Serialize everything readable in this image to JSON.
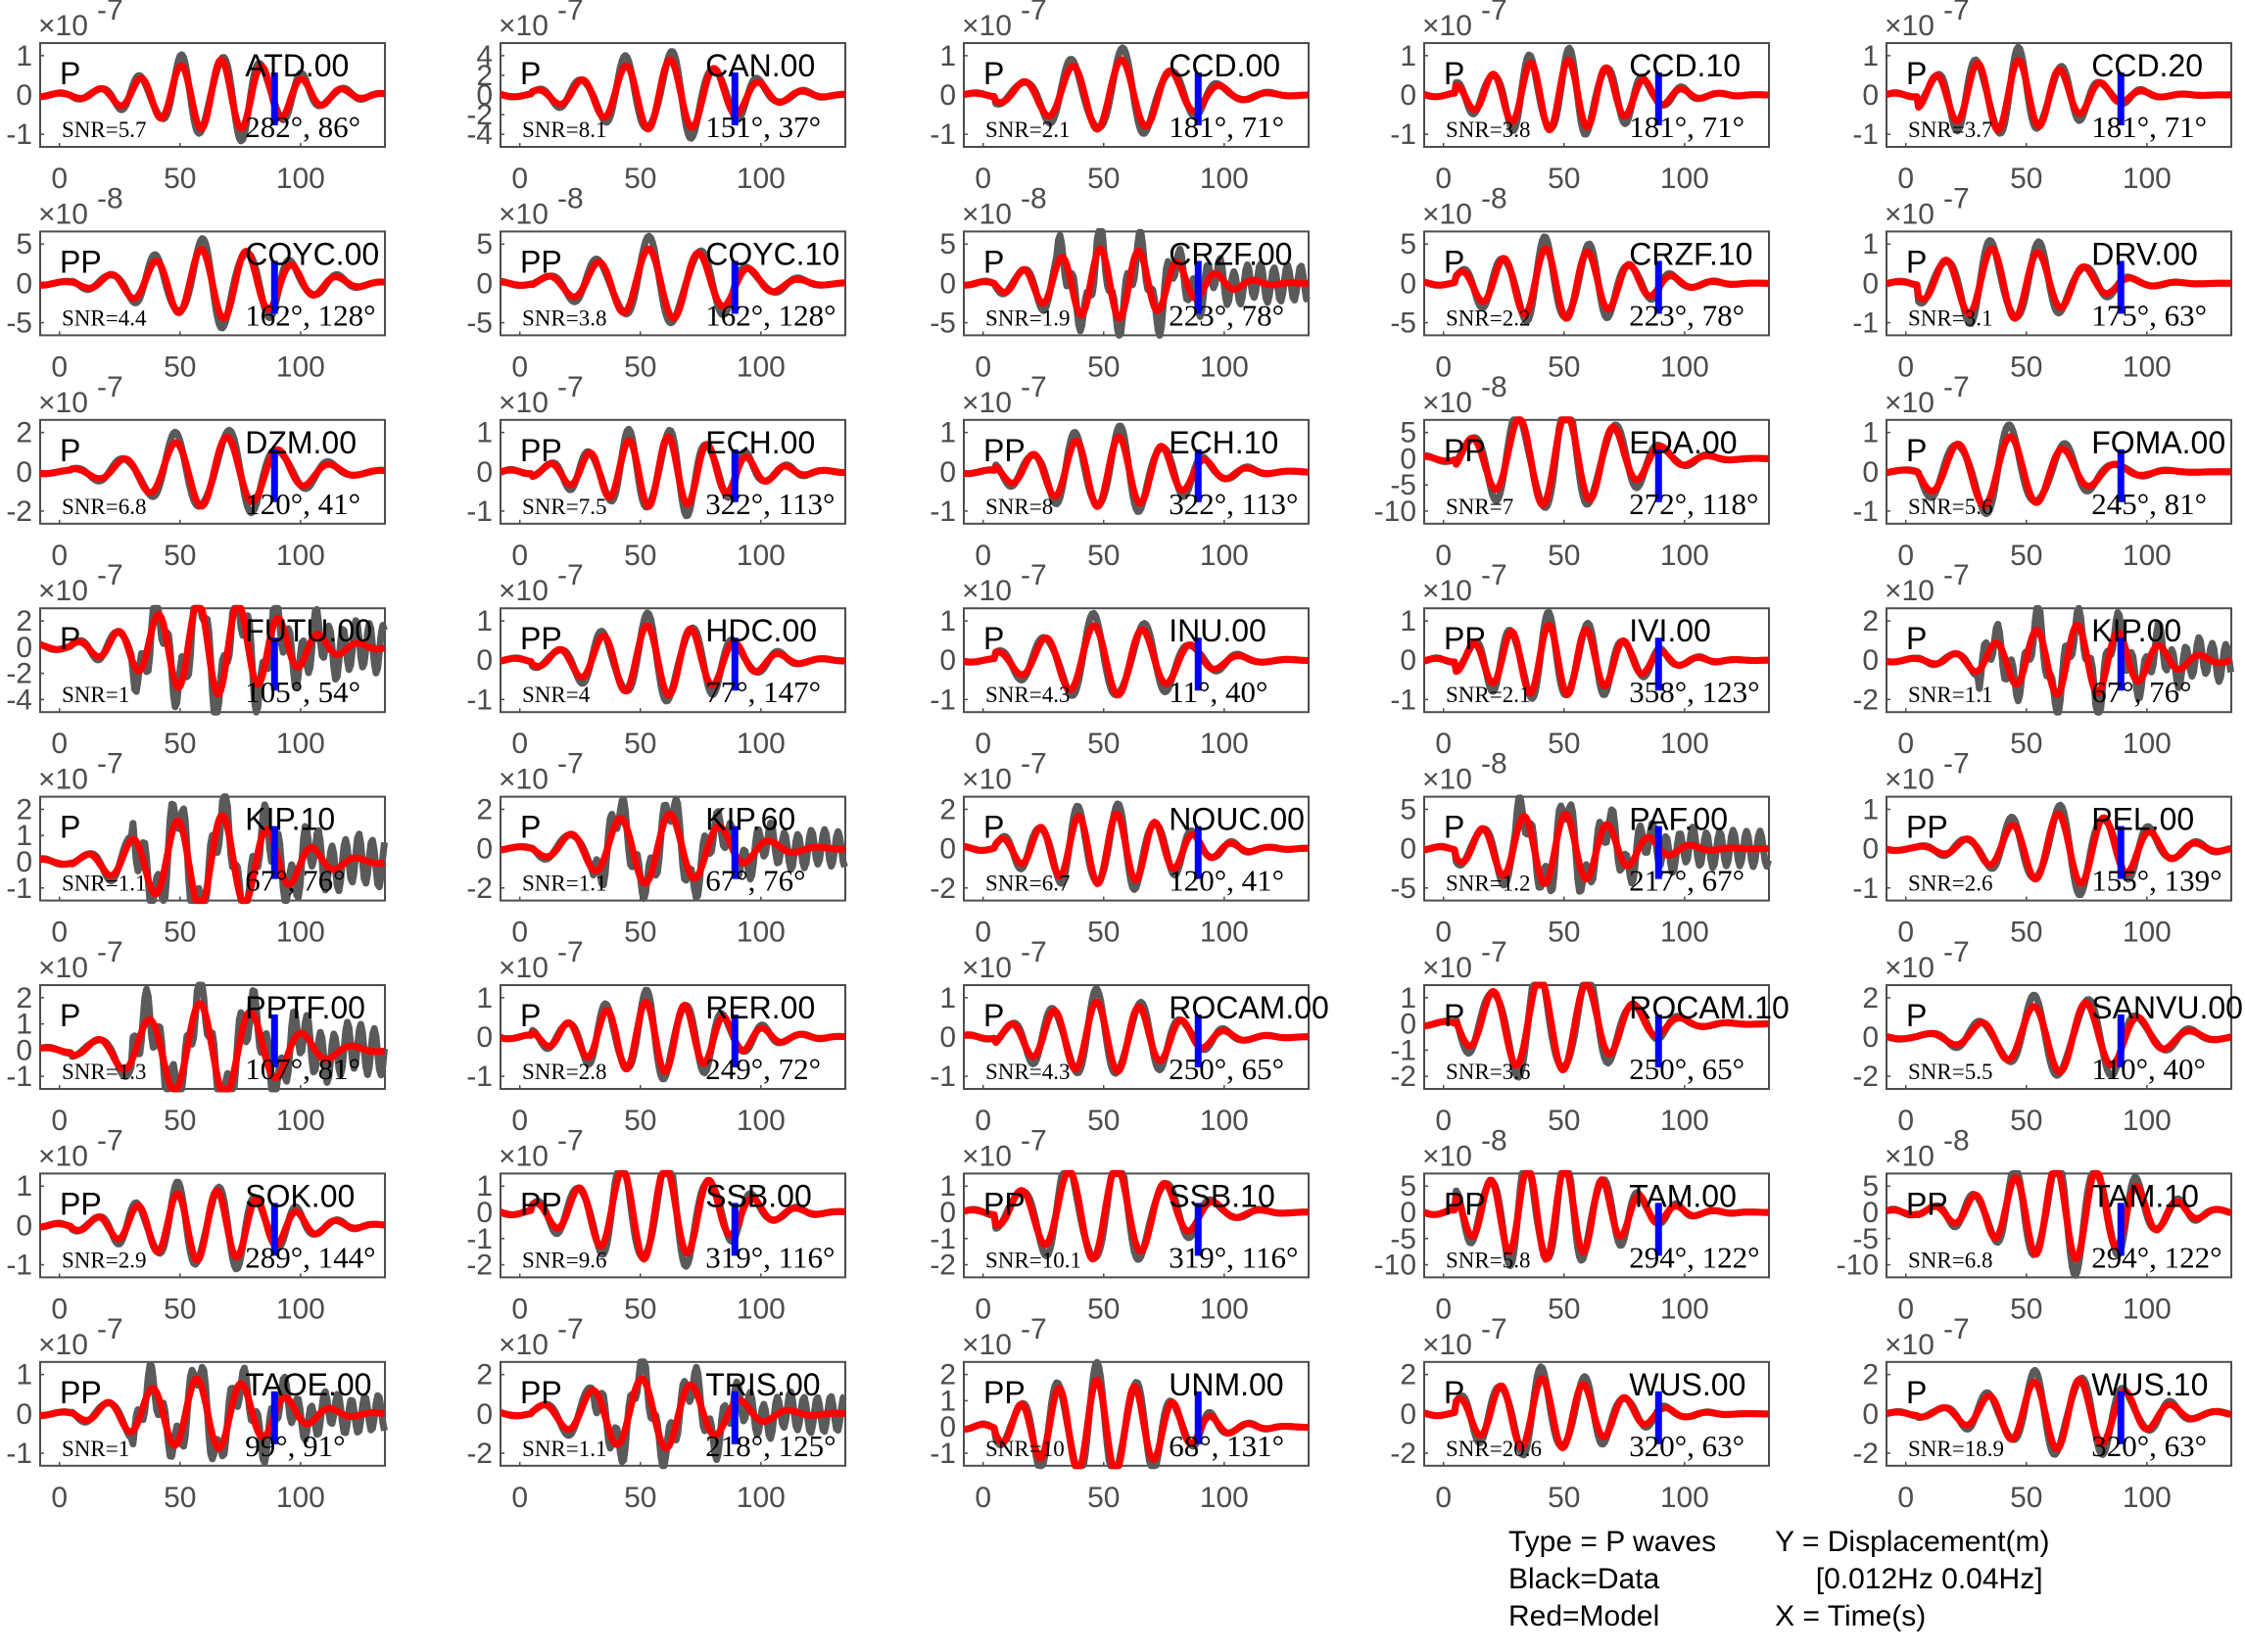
{
  "chart_data": {
    "type": "line",
    "layout": "grid 8 rows x 5 columns",
    "xlim": [
      -8,
      135
    ],
    "xticks": [
      0,
      50,
      100
    ],
    "marker_time": 89,
    "colors": {
      "data": "#5a5a5a",
      "model": "#ff0000",
      "marker": "#0000ff"
    },
    "series_names": [
      "Data",
      "Model"
    ],
    "panels": [
      {
        "station": "ATD.00",
        "phase": "P",
        "snr": "SNR=5.7",
        "angles": "282°, 86°",
        "exponent": "-7",
        "yticks": [
          -1,
          0,
          1
        ]
      },
      {
        "station": "CAN.00",
        "phase": "P",
        "snr": "SNR=8.1",
        "angles": "151°, 37°",
        "exponent": "-7",
        "yticks": [
          -4,
          -2,
          0,
          2,
          4
        ]
      },
      {
        "station": "CCD.00",
        "phase": "P",
        "snr": "SNR=2.1",
        "angles": "181°, 71°",
        "exponent": "-7",
        "yticks": [
          -1,
          0,
          1
        ]
      },
      {
        "station": "CCD.10",
        "phase": "P",
        "snr": "SNR=3.8",
        "angles": "181°, 71°",
        "exponent": "-7",
        "yticks": [
          -1,
          0,
          1
        ]
      },
      {
        "station": "CCD.20",
        "phase": "P",
        "snr": "SNR=3.7",
        "angles": "181°, 71°",
        "exponent": "-7",
        "yticks": [
          -1,
          0,
          1
        ]
      },
      {
        "station": "COYC.00",
        "phase": "PP",
        "snr": "SNR=4.4",
        "angles": "162°, 128°",
        "exponent": "-8",
        "yticks": [
          -5,
          0,
          5
        ]
      },
      {
        "station": "COYC.10",
        "phase": "PP",
        "snr": "SNR=3.8",
        "angles": "162°, 128°",
        "exponent": "-8",
        "yticks": [
          -5,
          0,
          5
        ]
      },
      {
        "station": "CRZF.00",
        "phase": "P",
        "snr": "SNR=1.9",
        "angles": "223°, 78°",
        "exponent": "-8",
        "yticks": [
          -5,
          0,
          5
        ]
      },
      {
        "station": "CRZF.10",
        "phase": "P",
        "snr": "SNR=2.2",
        "angles": "223°, 78°",
        "exponent": "-8",
        "yticks": [
          -5,
          0,
          5
        ]
      },
      {
        "station": "DRV.00",
        "phase": "P",
        "snr": "SNR=3.1",
        "angles": "175°, 63°",
        "exponent": "-7",
        "yticks": [
          -1,
          0,
          1
        ]
      },
      {
        "station": "DZM.00",
        "phase": "P",
        "snr": "SNR=6.8",
        "angles": "120°, 41°",
        "exponent": "-7",
        "yticks": [
          -2,
          0,
          2
        ]
      },
      {
        "station": "ECH.00",
        "phase": "PP",
        "snr": "SNR=7.5",
        "angles": "322°, 113°",
        "exponent": "-7",
        "yticks": [
          -1,
          0,
          1
        ]
      },
      {
        "station": "ECH.10",
        "phase": "PP",
        "snr": "SNR=8",
        "angles": "322°, 113°",
        "exponent": "-7",
        "yticks": [
          -1,
          0,
          1
        ]
      },
      {
        "station": "EDA.00",
        "phase": "PP",
        "snr": "SNR=7",
        "angles": "272°, 118°",
        "exponent": "-8",
        "yticks": [
          -10,
          -5,
          0,
          5
        ]
      },
      {
        "station": "FOMA.00",
        "phase": "P",
        "snr": "SNR=5.6",
        "angles": "245°, 81°",
        "exponent": "-7",
        "yticks": [
          -1,
          0,
          1
        ]
      },
      {
        "station": "FUTU.00",
        "phase": "P",
        "snr": "SNR=1",
        "angles": "105°, 54°",
        "exponent": "-7",
        "yticks": [
          -4,
          -2,
          0,
          2
        ]
      },
      {
        "station": "HDC.00",
        "phase": "PP",
        "snr": "SNR=4",
        "angles": "77°, 147°",
        "exponent": "-7",
        "yticks": [
          -1,
          0,
          1
        ]
      },
      {
        "station": "INU.00",
        "phase": "P",
        "snr": "SNR=4.3",
        "angles": "11°, 40°",
        "exponent": "-7",
        "yticks": [
          -1,
          0,
          1
        ]
      },
      {
        "station": "IVI.00",
        "phase": "PP",
        "snr": "SNR=2.1",
        "angles": "358°, 123°",
        "exponent": "-7",
        "yticks": [
          -1,
          0,
          1
        ]
      },
      {
        "station": "KIP.00",
        "phase": "P",
        "snr": "SNR=1.1",
        "angles": "67°, 76°",
        "exponent": "-7",
        "yticks": [
          -2,
          0,
          2
        ]
      },
      {
        "station": "KIP.10",
        "phase": "P",
        "snr": "SNR=1.1",
        "angles": "67°, 76°",
        "exponent": "-7",
        "yticks": [
          -1,
          0,
          1,
          2
        ]
      },
      {
        "station": "KIP.60",
        "phase": "P",
        "snr": "SNR=1.1",
        "angles": "67°, 76°",
        "exponent": "-7",
        "yticks": [
          -2,
          0,
          2
        ]
      },
      {
        "station": "NOUC.00",
        "phase": "P",
        "snr": "SNR=6.7",
        "angles": "120°, 41°",
        "exponent": "-7",
        "yticks": [
          -2,
          0,
          2
        ]
      },
      {
        "station": "PAF.00",
        "phase": "P",
        "snr": "SNR=1.2",
        "angles": "217°, 67°",
        "exponent": "-8",
        "yticks": [
          -5,
          0,
          5
        ]
      },
      {
        "station": "PEL.00",
        "phase": "PP",
        "snr": "SNR=2.6",
        "angles": "155°, 139°",
        "exponent": "-7",
        "yticks": [
          -1,
          0,
          1
        ]
      },
      {
        "station": "PPTF.00",
        "phase": "P",
        "snr": "SNR=1.3",
        "angles": "107°, 81°",
        "exponent": "-7",
        "yticks": [
          -1,
          0,
          1,
          2
        ]
      },
      {
        "station": "RER.00",
        "phase": "P",
        "snr": "SNR=2.8",
        "angles": "249°, 72°",
        "exponent": "-7",
        "yticks": [
          -1,
          0,
          1
        ]
      },
      {
        "station": "ROCAM.00",
        "phase": "P",
        "snr": "SNR=4.3",
        "angles": "250°, 65°",
        "exponent": "-7",
        "yticks": [
          -1,
          0,
          1
        ]
      },
      {
        "station": "ROCAM.10",
        "phase": "P",
        "snr": "SNR=3.6",
        "angles": "250°, 65°",
        "exponent": "-7",
        "yticks": [
          -2,
          -1,
          0,
          1
        ]
      },
      {
        "station": "SANVU.00",
        "phase": "P",
        "snr": "SNR=5.5",
        "angles": "110°, 40°",
        "exponent": "-7",
        "yticks": [
          -2,
          0,
          2
        ]
      },
      {
        "station": "SOK.00",
        "phase": "PP",
        "snr": "SNR=2.9",
        "angles": "289°, 144°",
        "exponent": "-7",
        "yticks": [
          -1,
          0,
          1
        ]
      },
      {
        "station": "SSB.00",
        "phase": "PP",
        "snr": "SNR=9.6",
        "angles": "319°, 116°",
        "exponent": "-7",
        "yticks": [
          -2,
          -1,
          0,
          1
        ]
      },
      {
        "station": "SSB.10",
        "phase": "PP",
        "snr": "SNR=10.1",
        "angles": "319°, 116°",
        "exponent": "-7",
        "yticks": [
          -2,
          -1,
          0,
          1
        ]
      },
      {
        "station": "TAM.00",
        "phase": "PP",
        "snr": "SNR=5.8",
        "angles": "294°, 122°",
        "exponent": "-8",
        "yticks": [
          -10,
          -5,
          0,
          5
        ]
      },
      {
        "station": "TAM.10",
        "phase": "PP",
        "snr": "SNR=6.8",
        "angles": "294°, 122°",
        "exponent": "-8",
        "yticks": [
          -10,
          -5,
          0,
          5
        ]
      },
      {
        "station": "TAOE.00",
        "phase": "PP",
        "snr": "SNR=1",
        "angles": "99°, 91°",
        "exponent": "-7",
        "yticks": [
          -1,
          0,
          1
        ]
      },
      {
        "station": "TRIS.00",
        "phase": "PP",
        "snr": "SNR=1.1",
        "angles": "218°, 125°",
        "exponent": "-7",
        "yticks": [
          -2,
          0,
          2
        ]
      },
      {
        "station": "UNM.00",
        "phase": "PP",
        "snr": "SNR=10",
        "angles": "68°, 131°",
        "exponent": "-7",
        "yticks": [
          -1,
          0,
          1,
          2
        ]
      },
      {
        "station": "WUS.00",
        "phase": "P",
        "snr": "SNR=20.6",
        "angles": "320°, 63°",
        "exponent": "-7",
        "yticks": [
          -2,
          0,
          2
        ]
      },
      {
        "station": "WUS.10",
        "phase": "P",
        "snr": "SNR=18.9",
        "angles": "320°, 63°",
        "exponent": "-7",
        "yticks": [
          -2,
          0,
          2
        ]
      }
    ],
    "legend": [
      "Type = P waves",
      "Black=Data",
      "Red=Model",
      "Y = Displacement(m)",
      "     [0.012Hz 0.04Hz]",
      "X = Time(s)"
    ]
  }
}
